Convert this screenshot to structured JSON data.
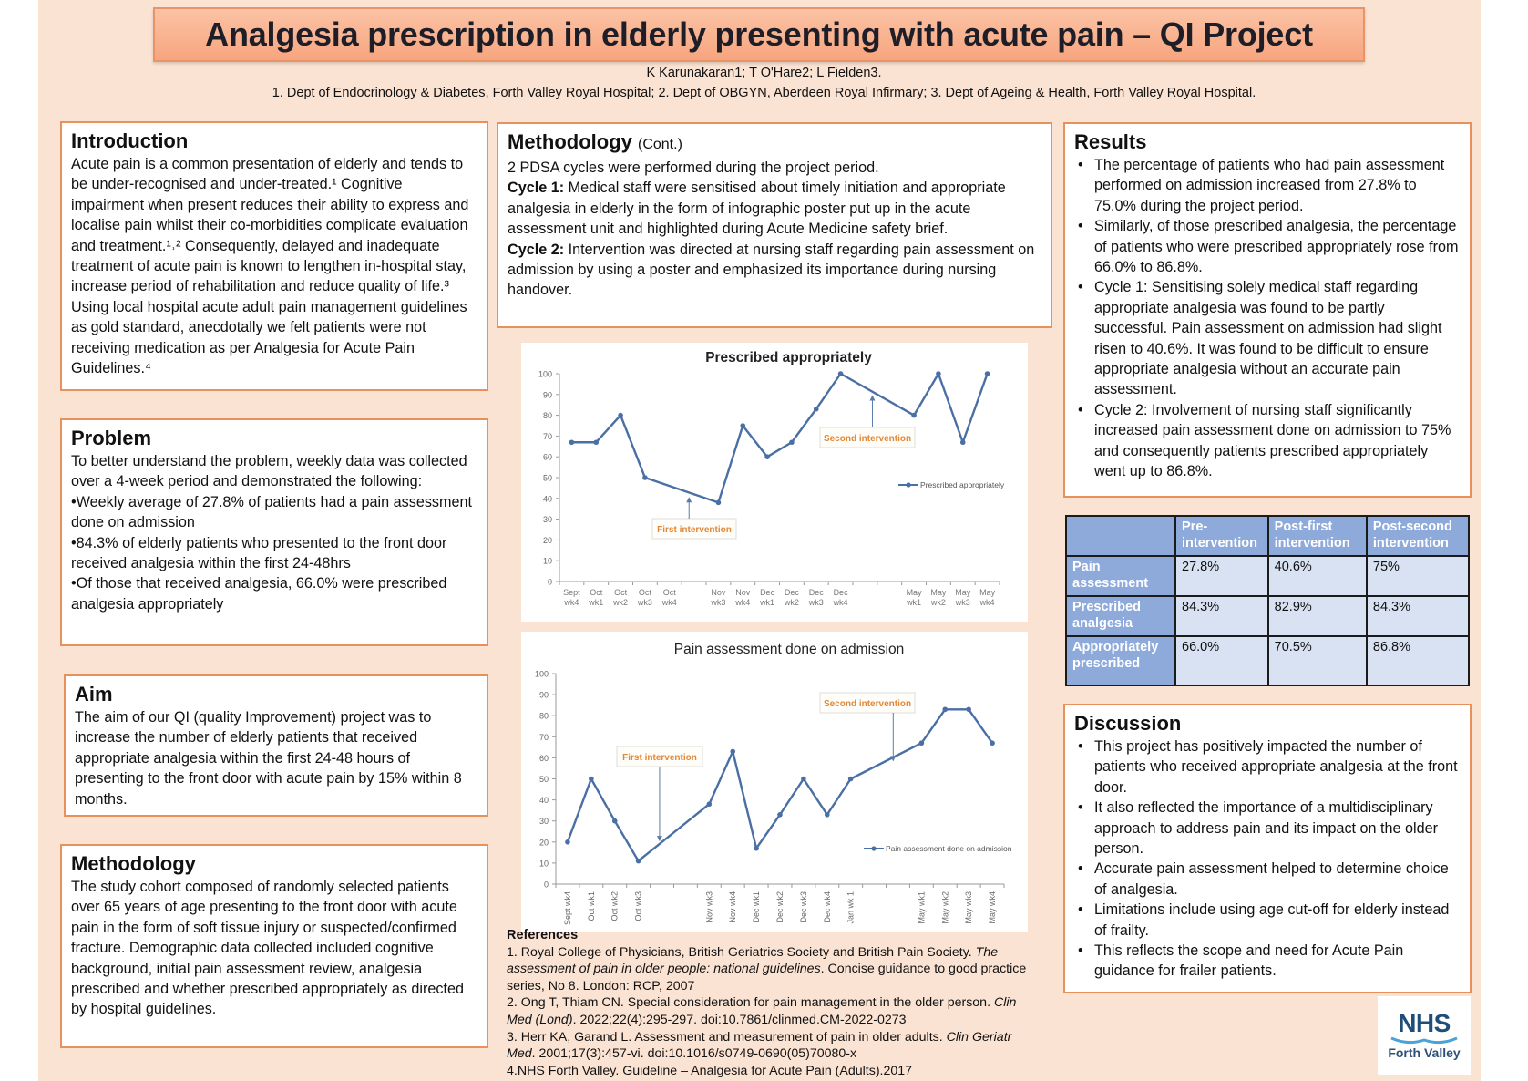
{
  "header": {
    "title": "Analgesia prescription in elderly presenting with acute pain – QI Project",
    "authors": "K Karunakaran1; T O'Hare2; L Fielden3.",
    "affiliations": "1. Dept of Endocrinology & Diabetes, Forth Valley Royal Hospital; 2. Dept of OBGYN, Aberdeen Royal Infirmary; 3. Dept of Ageing & Health, Forth Valley Royal Hospital."
  },
  "introduction": {
    "heading": "Introduction",
    "text": "Acute pain is a common presentation of elderly and tends to be under-recognised and under-treated.¹ Cognitive impairment when present reduces their ability to express and localise pain whilst their co-morbidities complicate evaluation and treatment.¹˒² Consequently, delayed and inadequate treatment of acute pain is known to lengthen in-hospital stay, increase period of rehabilitation and reduce quality of life.³ Using local hospital acute adult pain management guidelines as gold standard, anecdotally we felt patients were not receiving medication as per Analgesia for Acute Pain Guidelines.⁴"
  },
  "problem": {
    "heading": "Problem",
    "intro": "To better understand the problem, weekly data was collected over a 4-week period and demonstrated the following:",
    "points": [
      "•Weekly average of 27.8% of patients had a pain assessment done on admission",
      "•84.3% of elderly patients who presented to the front door received analgesia within the first 24-48hrs",
      "•Of those that received analgesia, 66.0% were prescribed analgesia appropriately"
    ]
  },
  "aim": {
    "heading": "Aim",
    "text": "The aim of our QI (quality Improvement) project was to increase the number of elderly patients that received appropriate analgesia within the first 24-48 hours of presenting to the front door with acute pain by 15% within 8 months."
  },
  "methodology": {
    "heading": "Methodology",
    "text": "The study cohort composed of randomly selected patients over 65 years of age presenting to the front door with acute pain in the form of soft tissue injury or suspected/confirmed fracture. Demographic data collected included cognitive background, initial pain assessment review, analgesia prescribed and whether prescribed appropriately as directed by hospital guidelines."
  },
  "methodology_cont": {
    "heading": "Methodology",
    "heading_suffix": "(Cont.)",
    "intro": "2 PDSA cycles were performed during the project period.",
    "cycle1_label": "Cycle 1:",
    "cycle1_text": " Medical staff were sensitised about timely initiation and appropriate analgesia in elderly in the form of infographic poster put up in the acute assessment unit and highlighted during Acute Medicine safety brief.",
    "cycle2_label": "Cycle 2:",
    "cycle2_text": " Intervention was directed at nursing staff regarding pain assessment on admission by using a poster and emphasized its importance during nursing handover."
  },
  "results": {
    "heading": "Results",
    "points": [
      "The percentage of patients who had pain assessment performed on admission increased from 27.8% to 75.0% during the project period.",
      "Similarly, of those prescribed analgesia, the percentage of patients who were prescribed appropriately rose from 66.0% to 86.8%.",
      "Cycle 1: Sensitising solely medical staff regarding appropriate analgesia was found to be partly successful. Pain assessment on admission had slight risen to 40.6%. It was found to be difficult to ensure appropriate analgesia without an accurate pain assessment.",
      "Cycle 2: Involvement of nursing staff significantly increased pain assessment done on admission to 75% and consequently patients prescribed appropriately went up to 86.8%."
    ]
  },
  "results_table": {
    "columns": [
      "",
      "Pre-intervention",
      "Post-first intervention",
      "Post-second intervention"
    ],
    "rows": [
      {
        "label": "Pain assessment",
        "values": [
          "27.8%",
          "40.6%",
          "75%"
        ]
      },
      {
        "label": "Prescribed analgesia",
        "values": [
          "84.3%",
          "82.9%",
          "84.3%"
        ]
      },
      {
        "label": "Appropriately prescribed",
        "values": [
          "66.0%",
          "70.5%",
          "86.8%"
        ]
      }
    ]
  },
  "discussion": {
    "heading": "Discussion",
    "points": [
      "This project has positively impacted the number of patients who received appropriate analgesia at the front door.",
      " It also reflected the importance of a multidisciplinary approach to address pain and its impact on the older person.",
      " Accurate pain assessment helped to determine choice of analgesia.",
      "Limitations include using age cut-off for elderly instead of frailty.",
      "This reflects the scope and need for Acute Pain guidance for frailer patients."
    ]
  },
  "references": {
    "heading": "References",
    "items": [
      {
        "pre": "1. Royal College of Physicians, British Geriatrics Society and British Pain Society. ",
        "ital": "The assessment of pain in older people: national guidelines",
        "post": ". Concise guidance to good practice series, No 8. London: RCP, 2007"
      },
      {
        "pre": "2. Ong T, Thiam CN. Special consideration for pain management in the older person. ",
        "ital": "Clin Med (Lond)",
        "post": ". 2022;22(4):295-297. doi:10.7861/clinmed.CM-2022-0273"
      },
      {
        "pre": "3. Herr KA, Garand L. Assessment and measurement of pain in older adults. ",
        "ital": "Clin Geriatr Med",
        "post": ". 2001;17(3):457-vi. doi:10.1016/s0749-0690(05)70080-x"
      },
      {
        "pre": "4.NHS Forth Valley. Guideline – Analgesia for Acute Pain (Adults).2017",
        "ital": "",
        "post": ""
      }
    ]
  },
  "logo": {
    "main": "NHS",
    "sub": "Forth Valley"
  },
  "colors": {
    "accent_border": "#e8915c",
    "series": "#4a6fa5",
    "annotation_text": "#e0883a",
    "table_header": "#8eaadb",
    "table_cell": "#d9e2f3"
  },
  "chart_data": [
    {
      "type": "line",
      "title": "Prescribed appropriately",
      "categories": [
        "Sept wk4",
        "Oct wk1",
        "Oct wk2",
        "Oct wk3",
        "Oct wk4",
        "",
        "Nov wk3",
        "Nov wk4",
        "Dec wk1",
        "Dec wk2",
        "Dec wk3",
        "Dec wk4",
        "",
        "",
        "May wk1",
        "May wk2",
        "May wk3",
        "May wk4"
      ],
      "tick_labels": [
        [
          "Sept",
          "wk4"
        ],
        [
          "Oct",
          "wk1"
        ],
        [
          "Oct",
          "wk2"
        ],
        [
          "Oct",
          "wk3"
        ],
        [
          "Oct",
          "wk4"
        ],
        [
          "",
          ""
        ],
        [
          "Nov",
          "wk3"
        ],
        [
          "Nov",
          "wk4"
        ],
        [
          "Dec",
          "wk1"
        ],
        [
          "Dec",
          "wk2"
        ],
        [
          "Dec",
          "wk3"
        ],
        [
          "Dec",
          "wk4"
        ],
        [
          "",
          ""
        ],
        [
          "",
          ""
        ],
        [
          "May",
          "wk1"
        ],
        [
          "May",
          "wk2"
        ],
        [
          "May",
          "wk3"
        ],
        [
          "May",
          "wk4"
        ]
      ],
      "series": [
        {
          "name": "Prescribed appropriately",
          "values": [
            67,
            67,
            80,
            50,
            null,
            null,
            38,
            75,
            60,
            67,
            83,
            100,
            null,
            null,
            80,
            100,
            67,
            100
          ]
        }
      ],
      "ylim": [
        0,
        100
      ],
      "yticks": [
        0,
        10,
        20,
        30,
        40,
        50,
        60,
        70,
        80,
        90,
        100
      ],
      "annotations": [
        {
          "text": "First intervention",
          "x_index": 4.8,
          "y": 42
        },
        {
          "text": "Second intervention",
          "x_index": 12.3,
          "y": 91
        }
      ],
      "legend": "right"
    },
    {
      "type": "line",
      "title": "Pain assessment done on admission",
      "categories": [
        "Sept wk4",
        "Oct wk1",
        "Oct wk2",
        "Oct wk3",
        "",
        "",
        "Nov wk3",
        "Nov wk4",
        "Dec wk1",
        "Dec wk2",
        "Dec wk3",
        "Dec wk4",
        "Jan wk 1",
        "",
        "",
        "May wk1",
        "May wk2",
        "May wk3",
        "May wk4"
      ],
      "series": [
        {
          "name": "Pain assessment done on admission",
          "values": [
            20,
            50,
            30,
            11,
            null,
            null,
            38,
            63,
            17,
            33,
            50,
            33,
            50,
            null,
            null,
            67,
            83,
            83,
            67
          ]
        }
      ],
      "ylim": [
        0,
        100
      ],
      "yticks": [
        0,
        10,
        20,
        30,
        40,
        50,
        60,
        70,
        80,
        90,
        100
      ],
      "annotations": [
        {
          "text": "First intervention",
          "x_index": 3.9,
          "y": 19
        },
        {
          "text": "Second intervention",
          "x_index": 13.8,
          "y": 57
        }
      ],
      "legend": "right"
    }
  ]
}
